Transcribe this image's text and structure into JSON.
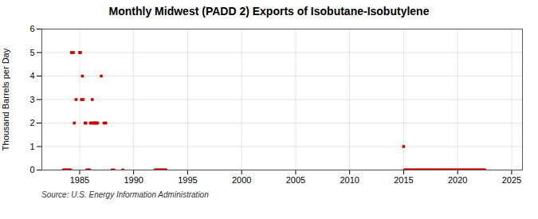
{
  "chart_data": {
    "type": "scatter",
    "title": "Monthly Midwest (PADD 2) Exports of Isobutane-Isobutylene",
    "ylabel": "Thousand Barrels per Day",
    "source": "Source: U.S. Energy Information Administration",
    "color": "#cc0000",
    "marker": "square",
    "grid": true,
    "xlim": [
      1981.5,
      2026
    ],
    "ylim": [
      0,
      6
    ],
    "xticks": [
      1985,
      1990,
      1995,
      2000,
      2005,
      2010,
      2015,
      2020,
      2025
    ],
    "yticks": [
      0,
      1,
      2,
      3,
      4,
      5,
      6
    ],
    "x": [
      1983.5,
      1983.6,
      1983.7,
      1983.8,
      1983.9,
      1984.0,
      1984.08,
      1984.17,
      1984.25,
      1984.42,
      1984.5,
      1984.67,
      1985.0,
      1985.08,
      1985.17,
      1985.25,
      1985.33,
      1985.5,
      1985.58,
      1985.67,
      1985.75,
      1985.83,
      1985.92,
      1986.0,
      1986.08,
      1986.17,
      1986.25,
      1986.33,
      1986.42,
      1986.5,
      1986.58,
      1986.67,
      1987.0,
      1987.25,
      1987.42,
      1988.0,
      1988.17,
      1989.0,
      1992.0,
      1992.08,
      1992.17,
      1992.25,
      1992.33,
      1992.42,
      1992.5,
      1992.58,
      1992.67,
      1992.75,
      1992.83,
      1992.92,
      1993.0,
      2015.0,
      2015.08,
      2015.17,
      2015.25,
      2015.33,
      2015.42,
      2015.5,
      2015.58,
      2015.67,
      2015.75,
      2015.83,
      2015.92,
      2016.0,
      2016.08,
      2016.17,
      2016.25,
      2016.33,
      2016.42,
      2016.5,
      2016.58,
      2016.67,
      2016.75,
      2016.83,
      2016.92,
      2017.0,
      2017.08,
      2017.17,
      2017.25,
      2017.33,
      2017.42,
      2017.5,
      2017.58,
      2017.67,
      2017.75,
      2017.83,
      2017.92,
      2018.0,
      2018.08,
      2018.17,
      2018.25,
      2018.33,
      2018.42,
      2018.5,
      2018.58,
      2018.67,
      2018.75,
      2018.83,
      2018.92,
      2019.0,
      2019.08,
      2019.17,
      2019.25,
      2019.33,
      2019.42,
      2019.5,
      2019.58,
      2019.67,
      2019.75,
      2019.83,
      2019.92,
      2020.0,
      2020.08,
      2020.17,
      2020.25,
      2020.33,
      2020.42,
      2020.5,
      2020.58,
      2020.67,
      2020.75,
      2020.83,
      2020.92,
      2021.0,
      2021.08,
      2021.17,
      2021.25,
      2021.33,
      2021.42,
      2021.5,
      2021.58,
      2021.67,
      2021.75,
      2021.83,
      2021.92,
      2022.0,
      2022.08,
      2022.17,
      2022.25,
      2022.33,
      2022.42,
      2022.5
    ],
    "values": [
      0,
      0,
      0,
      0,
      0,
      0,
      0,
      0,
      5,
      5,
      2,
      3,
      5,
      5,
      3,
      4,
      3,
      2,
      2,
      0,
      0,
      0,
      0,
      2,
      2,
      3,
      2,
      2,
      2,
      2,
      2,
      2,
      4,
      2,
      2,
      0,
      0,
      0,
      0,
      0,
      0,
      0,
      0,
      0,
      0,
      0,
      0,
      0,
      0,
      0,
      0,
      1,
      0,
      0,
      0,
      0,
      0,
      0,
      0,
      0,
      0,
      0,
      0,
      0,
      0,
      0,
      0,
      0,
      0,
      0,
      0,
      0,
      0,
      0,
      0,
      0,
      0,
      0,
      0,
      0,
      0,
      0,
      0,
      0,
      0,
      0,
      0,
      0,
      0,
      0,
      0,
      0,
      0,
      0,
      0,
      0,
      0,
      0,
      0,
      0,
      0,
      0,
      0,
      0,
      0,
      0,
      0,
      0,
      0,
      0,
      0,
      0,
      0,
      0,
      0,
      0,
      0,
      0,
      0,
      0,
      0,
      0,
      0,
      0,
      0,
      0,
      0,
      0,
      0,
      0,
      0,
      0,
      0,
      0,
      0,
      0,
      0,
      0,
      0,
      0,
      0,
      0
    ]
  }
}
